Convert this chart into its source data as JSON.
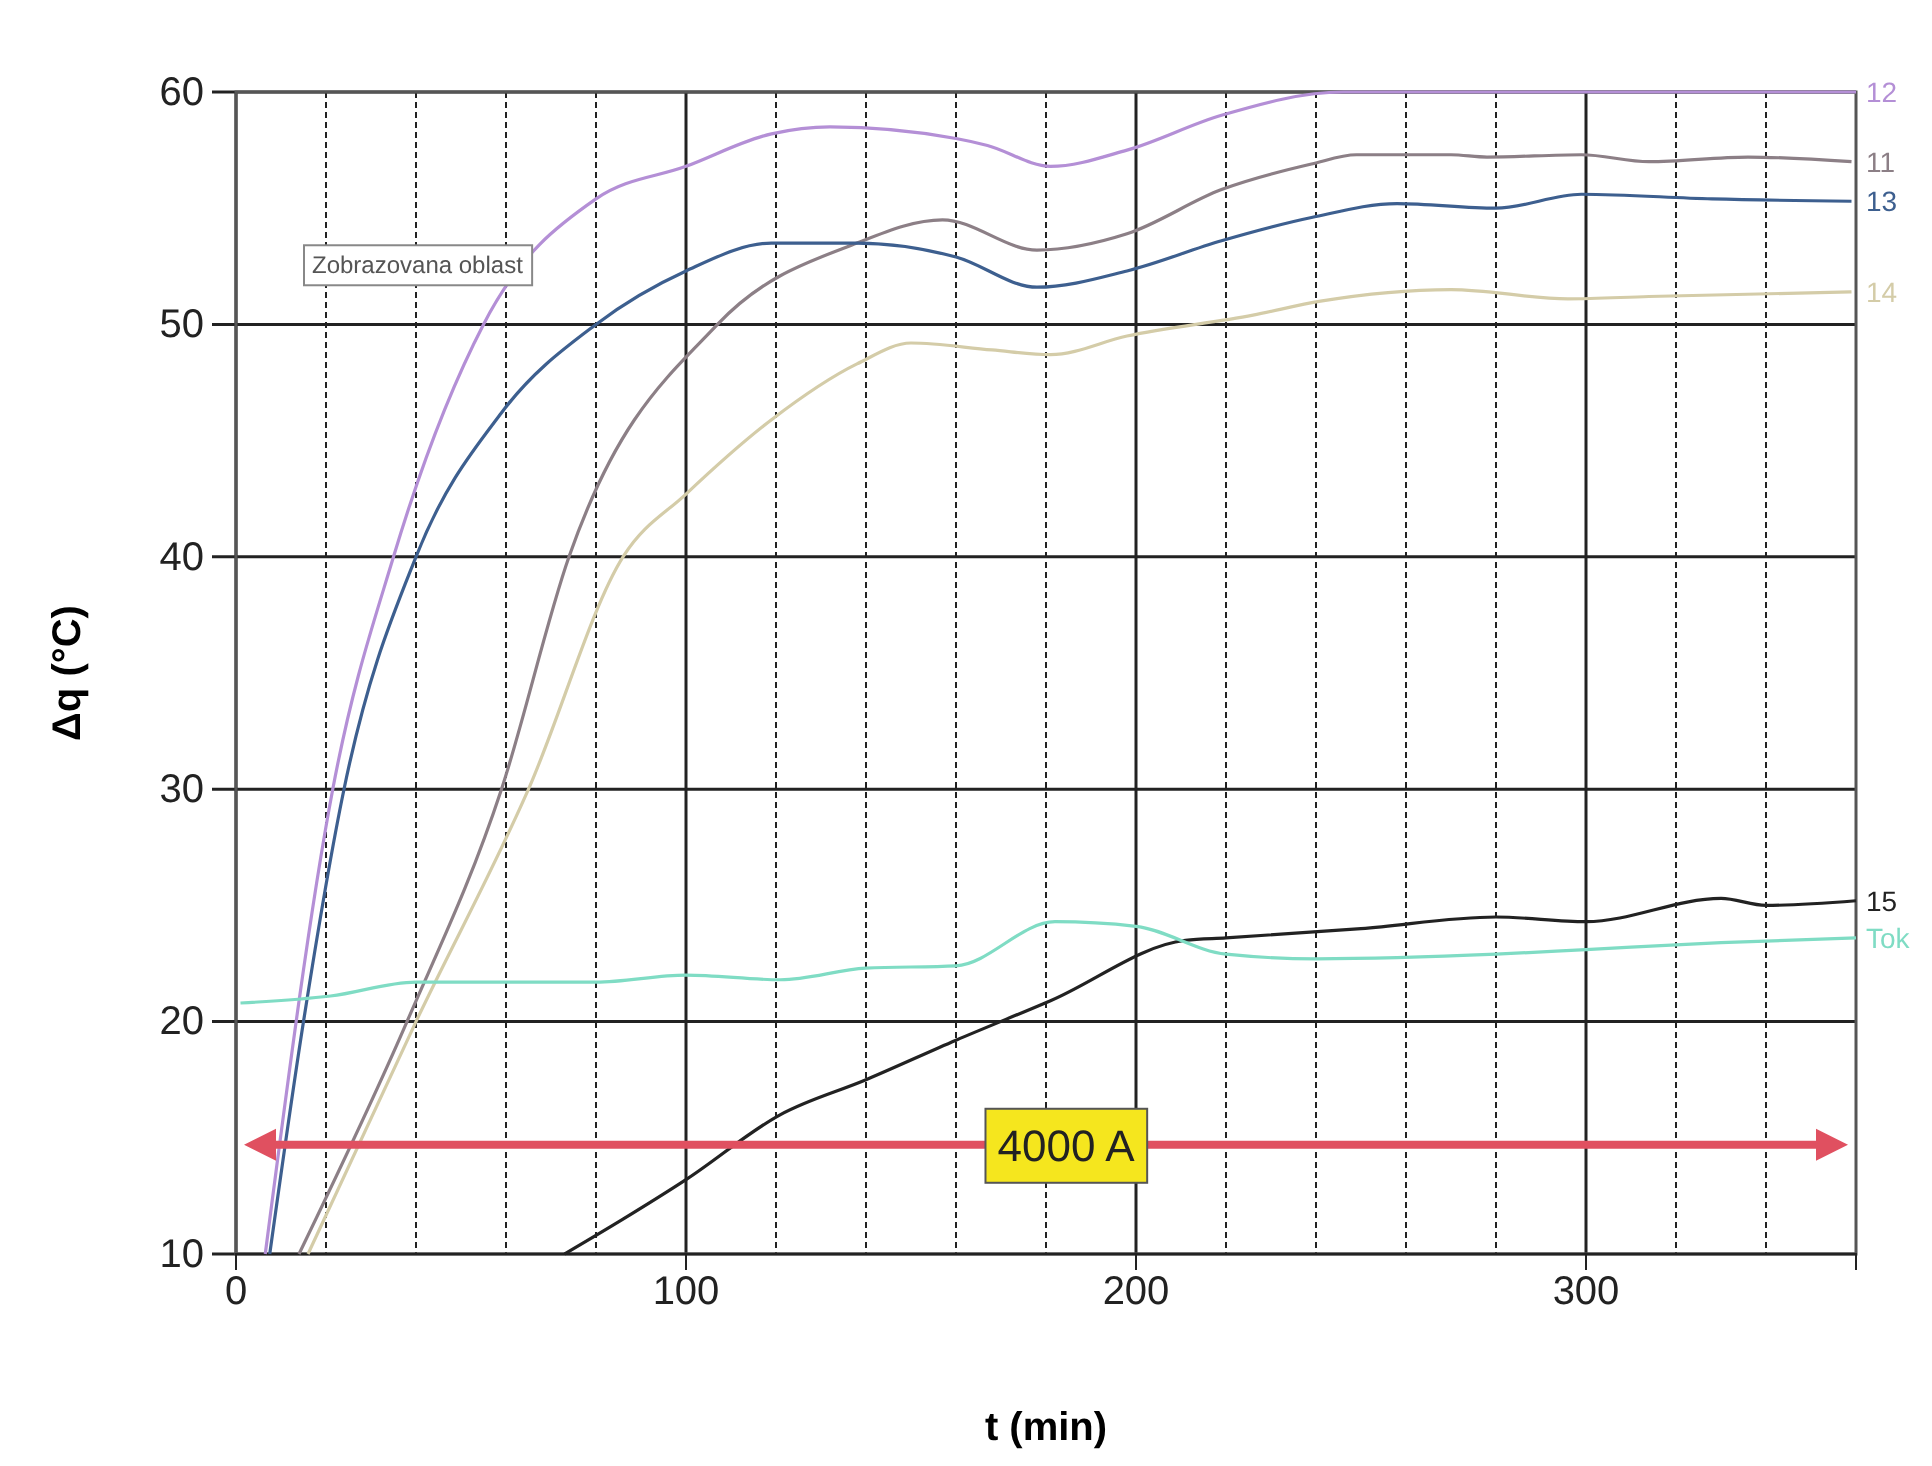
{
  "chart_data": {
    "type": "line",
    "xlabel": "t (min)",
    "ylabel": "Δq (°C)",
    "xlim": [
      0,
      360
    ],
    "ylim": [
      10,
      60
    ],
    "xticks": [
      0,
      {
        "value": 20,
        "label": null
      },
      {
        "value": 40,
        "label": null
      },
      {
        "value": 60,
        "label": null
      },
      {
        "value": 80,
        "label": null
      },
      100,
      {
        "value": 120,
        "label": null
      },
      {
        "value": 140,
        "label": null
      },
      {
        "value": 160,
        "label": null
      },
      {
        "value": 180,
        "label": null
      },
      200,
      {
        "value": 220,
        "label": null
      },
      {
        "value": 240,
        "label": null
      },
      {
        "value": 260,
        "label": null
      },
      {
        "value": 280,
        "label": null
      },
      300,
      {
        "value": 320,
        "label": null
      },
      {
        "value": 340,
        "label": null
      }
    ],
    "yticks": [
      10,
      20,
      30,
      40,
      50,
      60
    ],
    "grid": true,
    "marker": "none",
    "line_style": "solid",
    "series": [
      {
        "name": "12",
        "color": "#b48fd6",
        "x": [
          6.5,
          21.5,
          35,
          55,
          80,
          100,
          119,
          132,
          160,
          167,
          181,
          198,
          219,
          246,
          280,
          320,
          360
        ],
        "values": [
          10,
          30,
          40,
          50,
          55.4,
          56.8,
          58.2,
          58.5,
          58,
          57.7,
          56.8,
          57.5,
          59,
          60,
          60,
          60,
          60
        ]
      },
      {
        "name": "11",
        "color": "#8c7f86",
        "x": [
          14,
          38,
          59,
          74,
          107,
          138,
          157,
          178,
          198,
          219,
          239,
          249,
          270,
          278,
          299,
          314,
          336,
          359
        ],
        "values": [
          10,
          20,
          30,
          40,
          50,
          53.5,
          54.5,
          53.2,
          53.9,
          55.8,
          56.9,
          57.3,
          57.3,
          57.2,
          57.3,
          57,
          57.2,
          57
        ]
      },
      {
        "name": "13",
        "color": "#3d5f8f",
        "x": [
          7.5,
          15,
          24,
          40,
          59,
          80,
          100,
          119,
          138,
          160,
          178,
          198,
          219,
          239,
          258,
          280,
          299,
          328,
          359
        ],
        "values": [
          10,
          20,
          30,
          40,
          46.2,
          50,
          52.3,
          53.5,
          53.5,
          52.9,
          51.6,
          52.3,
          53.6,
          54.6,
          55.2,
          55,
          55.6,
          55.4,
          55.3
        ]
      },
      {
        "name": "14",
        "color": "#d4cca8",
        "x": [
          16,
          40,
          65,
          86,
          100,
          119,
          138,
          150,
          168,
          181,
          198,
          226,
          241,
          270,
          296,
          314,
          359
        ],
        "values": [
          10,
          20,
          30,
          40,
          42.7,
          45.9,
          48.3,
          49.2,
          48.9,
          48.7,
          49.5,
          50.4,
          51,
          51.5,
          51.1,
          51.2,
          51.4
        ]
      },
      {
        "name": "15",
        "color": "#222222",
        "x": [
          73,
          86,
          100,
          121,
          140,
          160,
          181,
          211,
          220,
          250,
          280,
          300,
          330,
          340,
          360
        ],
        "values": [
          10,
          11.5,
          13.2,
          16,
          17.5,
          19.2,
          20.9,
          23.5,
          23.6,
          24,
          24.5,
          24.3,
          25.3,
          25,
          25.2
        ]
      },
      {
        "name": "Tok",
        "color": "#7fdcc4",
        "x": [
          1,
          21,
          40,
          80,
          100,
          121,
          140,
          160,
          182,
          200,
          220,
          240,
          280,
          300,
          330,
          360
        ],
        "values": [
          20.8,
          21.1,
          21.7,
          21.7,
          22,
          21.8,
          22.3,
          22.4,
          24.3,
          24.1,
          22.9,
          22.7,
          22.9,
          23.1,
          23.4,
          23.6
        ]
      }
    ],
    "ref_lines": [
      {
        "axis": "y",
        "value": 14.7,
        "label": "4000 A",
        "color": "#e05060"
      }
    ],
    "annotations": [
      "Zobrazovana oblast"
    ]
  }
}
